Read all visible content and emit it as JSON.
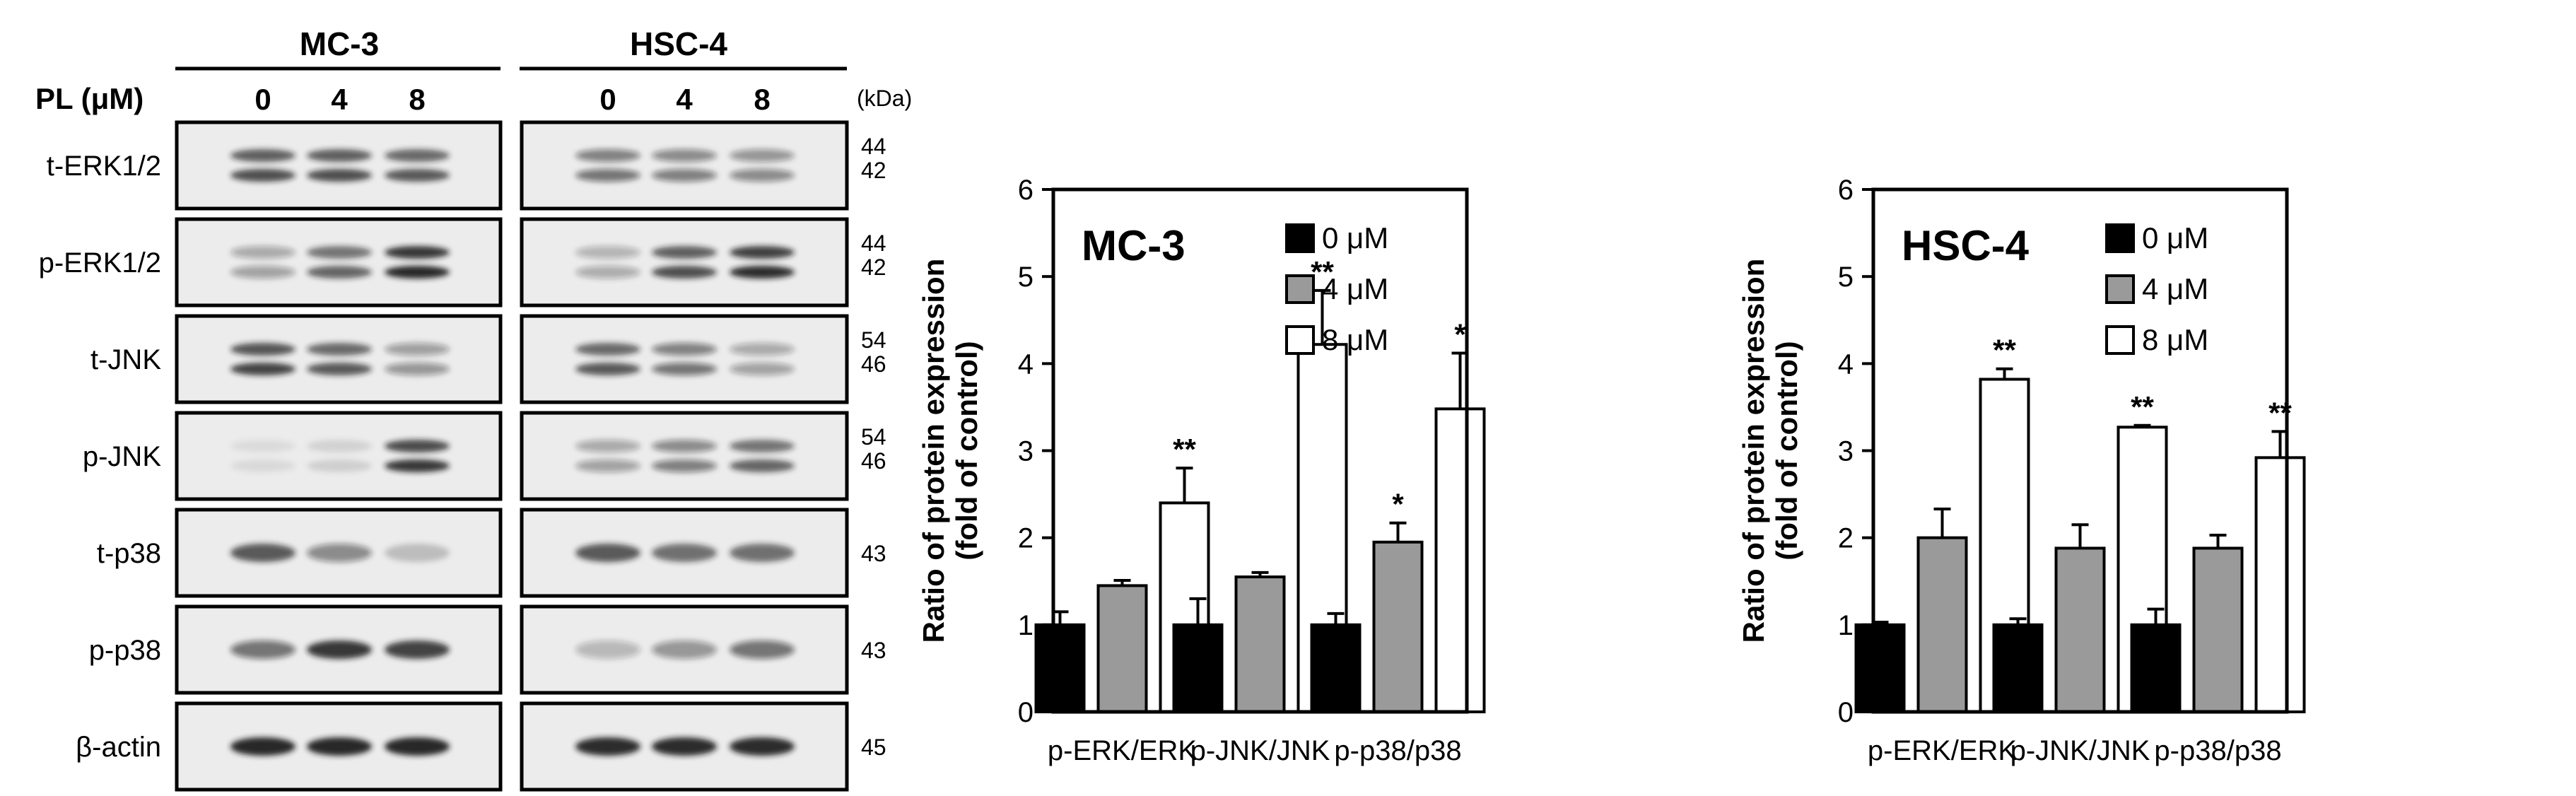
{
  "western_blot": {
    "cell_lines": [
      "MC-3",
      "HSC-4"
    ],
    "treatment_label": "PL (μM)",
    "doses": [
      "0",
      "4",
      "8"
    ],
    "kda_header": "(kDa)",
    "rows": [
      {
        "label": "t-ERK1/2",
        "kda": [
          "44",
          "42"
        ],
        "bands": 2,
        "mc3": [
          0.75,
          0.75,
          0.7
        ],
        "hsc4": [
          0.55,
          0.5,
          0.45
        ]
      },
      {
        "label": "p-ERK1/2",
        "kda": [
          "44",
          "42"
        ],
        "bands": 2,
        "mc3": [
          0.35,
          0.65,
          0.95
        ],
        "hsc4": [
          0.3,
          0.75,
          0.9
        ]
      },
      {
        "label": "t-JNK",
        "kda": [
          "54",
          "46"
        ],
        "bands": 2,
        "mc3": [
          0.8,
          0.7,
          0.4
        ],
        "hsc4": [
          0.7,
          0.55,
          0.35
        ]
      },
      {
        "label": "p-JNK",
        "kda": [
          "54",
          "46"
        ],
        "bands": 2,
        "mc3": [
          0.08,
          0.12,
          0.85
        ],
        "hsc4": [
          0.35,
          0.5,
          0.65
        ]
      },
      {
        "label": "t-p38",
        "kda": [
          "43"
        ],
        "bands": 1,
        "mc3": [
          0.7,
          0.45,
          0.2
        ],
        "hsc4": [
          0.7,
          0.6,
          0.6
        ]
      },
      {
        "label": "p-p38",
        "kda": [
          "43"
        ],
        "bands": 1,
        "mc3": [
          0.55,
          0.85,
          0.8
        ],
        "hsc4": [
          0.25,
          0.4,
          0.55
        ]
      },
      {
        "label": "β-actin",
        "kda": [
          "45"
        ],
        "bands": 1,
        "mc3": [
          0.95,
          0.95,
          0.95
        ],
        "hsc4": [
          0.9,
          0.9,
          0.9
        ]
      }
    ]
  },
  "chart_data": [
    {
      "type": "bar",
      "title": "MC-3",
      "ylabel_line1": "Ratio of protein expression",
      "ylabel_line2": "(fold of control)",
      "ylim": [
        0,
        6
      ],
      "yticks": [
        "0",
        "1",
        "2",
        "3",
        "4",
        "5",
        "6"
      ],
      "categories": [
        "p-ERK/ERK",
        "p-JNK/JNK",
        "p-p38/p38"
      ],
      "legend_position": "top-right",
      "series": [
        {
          "name": "0 μM",
          "color": "#000000",
          "values": [
            1.0,
            1.0,
            1.0
          ],
          "errors": [
            0.15,
            0.3,
            0.13
          ],
          "sig": [
            "",
            "",
            ""
          ]
        },
        {
          "name": "4 μM",
          "color": "#9a9a9a",
          "values": [
            1.45,
            1.55,
            1.95
          ],
          "errors": [
            0.06,
            0.05,
            0.22
          ],
          "sig": [
            "",
            "",
            "*"
          ]
        },
        {
          "name": "8 μM",
          "color": "#ffffff",
          "values": [
            2.4,
            4.22,
            3.48
          ],
          "errors": [
            0.4,
            0.62,
            0.64
          ],
          "sig": [
            "**",
            "**",
            "*"
          ]
        }
      ]
    },
    {
      "type": "bar",
      "title": "HSC-4",
      "ylabel_line1": "Ratio of protein expression",
      "ylabel_line2": "(fold of control)",
      "ylim": [
        0,
        6
      ],
      "yticks": [
        "0",
        "1",
        "2",
        "3",
        "4",
        "5",
        "6"
      ],
      "categories": [
        "p-ERK/ERK",
        "p-JNK/JNK",
        "p-p38/p38"
      ],
      "legend_position": "top-right",
      "series": [
        {
          "name": "0 μM",
          "color": "#000000",
          "values": [
            1.0,
            1.0,
            1.0
          ],
          "errors": [
            0.03,
            0.07,
            0.18
          ],
          "sig": [
            "",
            "",
            ""
          ]
        },
        {
          "name": "4 μM",
          "color": "#9a9a9a",
          "values": [
            2.0,
            1.88,
            1.88
          ],
          "errors": [
            0.33,
            0.27,
            0.15
          ],
          "sig": [
            "",
            "",
            ""
          ]
        },
        {
          "name": "8 μM",
          "color": "#ffffff",
          "values": [
            3.82,
            3.27,
            2.92
          ],
          "errors": [
            0.12,
            0.02,
            0.3
          ],
          "sig": [
            "**",
            "**",
            "**"
          ]
        }
      ]
    }
  ]
}
